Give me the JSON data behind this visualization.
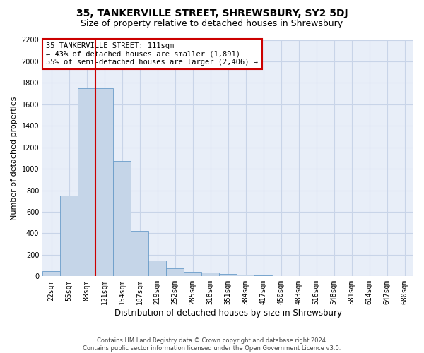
{
  "title": "35, TANKERVILLE STREET, SHREWSBURY, SY2 5DJ",
  "subtitle": "Size of property relative to detached houses in Shrewsbury",
  "xlabel": "Distribution of detached houses by size in Shrewsbury",
  "ylabel": "Number of detached properties",
  "footer_line1": "Contains HM Land Registry data © Crown copyright and database right 2024.",
  "footer_line2": "Contains public sector information licensed under the Open Government Licence v3.0.",
  "bar_color": "#c5d5e8",
  "bar_edge_color": "#6a9cc9",
  "grid_color": "#c8d4e8",
  "background_color": "#e8eef8",
  "annotation_box_color": "#cc0000",
  "vline_color": "#cc0000",
  "categories": [
    "22sqm",
    "55sqm",
    "88sqm",
    "121sqm",
    "154sqm",
    "187sqm",
    "219sqm",
    "252sqm",
    "285sqm",
    "318sqm",
    "351sqm",
    "384sqm",
    "417sqm",
    "450sqm",
    "483sqm",
    "516sqm",
    "548sqm",
    "581sqm",
    "614sqm",
    "647sqm",
    "680sqm"
  ],
  "values": [
    45,
    750,
    1750,
    1750,
    1075,
    420,
    150,
    75,
    40,
    35,
    22,
    18,
    12,
    0,
    0,
    0,
    0,
    0,
    0,
    0,
    0
  ],
  "ylim": [
    0,
    2200
  ],
  "yticks": [
    0,
    200,
    400,
    600,
    800,
    1000,
    1200,
    1400,
    1600,
    1800,
    2000,
    2200
  ],
  "property_label": "35 TANKERVILLE STREET: 111sqm",
  "annotation_line1": "← 43% of detached houses are smaller (1,891)",
  "annotation_line2": "55% of semi-detached houses are larger (2,406) →",
  "vline_x": 2.5,
  "title_fontsize": 10,
  "subtitle_fontsize": 9,
  "tick_fontsize": 7,
  "ylabel_fontsize": 8,
  "xlabel_fontsize": 8.5,
  "annotation_fontsize": 7.5
}
